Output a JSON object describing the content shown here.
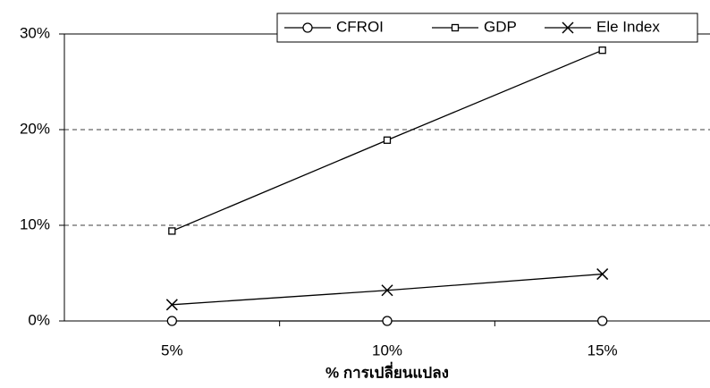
{
  "chart_data": {
    "type": "line",
    "x_label": "% การเปลี่ยนแปลง",
    "categories": [
      "5%",
      "10%",
      "15%"
    ],
    "series": [
      {
        "name": "CFROI",
        "color": "#000000",
        "marker": "circle",
        "values": [
          0,
          0,
          0
        ]
      },
      {
        "name": "GDP",
        "color": "#000000",
        "marker": "square",
        "values": [
          9.4,
          18.9,
          28.3
        ]
      },
      {
        "name": "Ele Index",
        "color": "#000000",
        "marker": "x",
        "values": [
          1.7,
          3.2,
          4.9
        ]
      }
    ],
    "ylim": [
      0,
      30
    ],
    "yticks": [
      {
        "value": 0,
        "label": "0%"
      },
      {
        "value": 10,
        "label": "10%"
      },
      {
        "value": 20,
        "label": "20%"
      },
      {
        "value": 30,
        "label": "30%"
      }
    ],
    "grid": true,
    "legend": "top-right"
  }
}
